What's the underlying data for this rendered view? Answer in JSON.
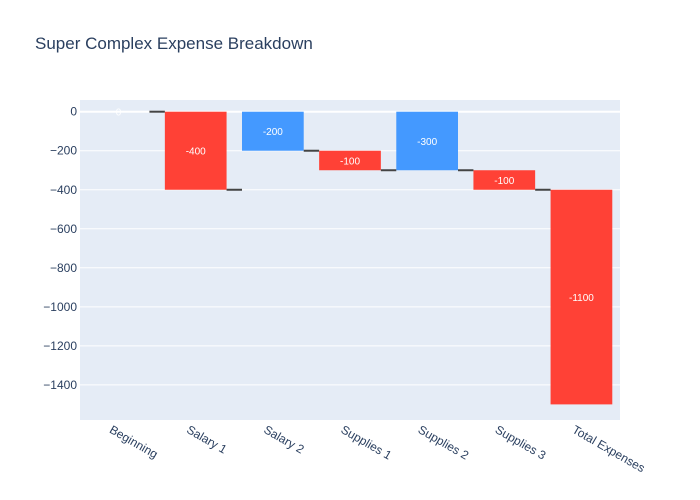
{
  "chart_data": {
    "type": "waterfall",
    "title": "Super Complex Expense Breakdown",
    "xlabel": "",
    "ylabel": "",
    "ylim": [
      -1580,
      60
    ],
    "grid": true,
    "legend": "none",
    "categories": [
      "Beginning",
      "Salary 1",
      "Salary 2",
      "Supplies 1",
      "Supplies 2",
      "Supplies 3",
      "Total Expenses"
    ],
    "bars": [
      {
        "category": "Beginning",
        "base": 0,
        "end": 0,
        "label": "0",
        "kind": "relative"
      },
      {
        "category": "Salary 1",
        "base": 0,
        "end": -400,
        "label": "-400",
        "kind": "decreasing"
      },
      {
        "category": "Salary 2",
        "base": 0,
        "end": -200,
        "label": "-200",
        "kind": "increasing"
      },
      {
        "category": "Supplies 1",
        "base": -200,
        "end": -300,
        "label": "-100",
        "kind": "decreasing"
      },
      {
        "category": "Supplies 2",
        "base": 0,
        "end": -300,
        "label": "-300",
        "kind": "increasing"
      },
      {
        "category": "Supplies 3",
        "base": -300,
        "end": -400,
        "label": "-100",
        "kind": "decreasing"
      },
      {
        "category": "Total Expenses",
        "base": -400,
        "end": -1500,
        "label": "-1100",
        "kind": "decreasing"
      }
    ],
    "connectors": [
      {
        "from": 0,
        "to": 1,
        "y": 0
      },
      {
        "from": 1,
        "to": 2,
        "y": -400
      },
      {
        "from": 2,
        "to": 3,
        "y": -200
      },
      {
        "from": 3,
        "to": 4,
        "y": -300
      },
      {
        "from": 4,
        "to": 5,
        "y": -300
      },
      {
        "from": 5,
        "to": 6,
        "y": -400
      }
    ],
    "yticks": [
      0,
      -200,
      -400,
      -600,
      -800,
      -1000,
      -1200,
      -1400
    ],
    "ytick_labels": [
      "0",
      "−200",
      "−400",
      "−600",
      "−800",
      "−1000",
      "−1200",
      "−1400"
    ],
    "colors": {
      "decreasing": "#ff4136",
      "increasing": "#3d9970",
      "increasing_display": "#4499ff",
      "plot_bg": "#e5ecf6",
      "grid": "#ffffff",
      "connector": "#444444",
      "text": "#2a3f5f"
    }
  }
}
